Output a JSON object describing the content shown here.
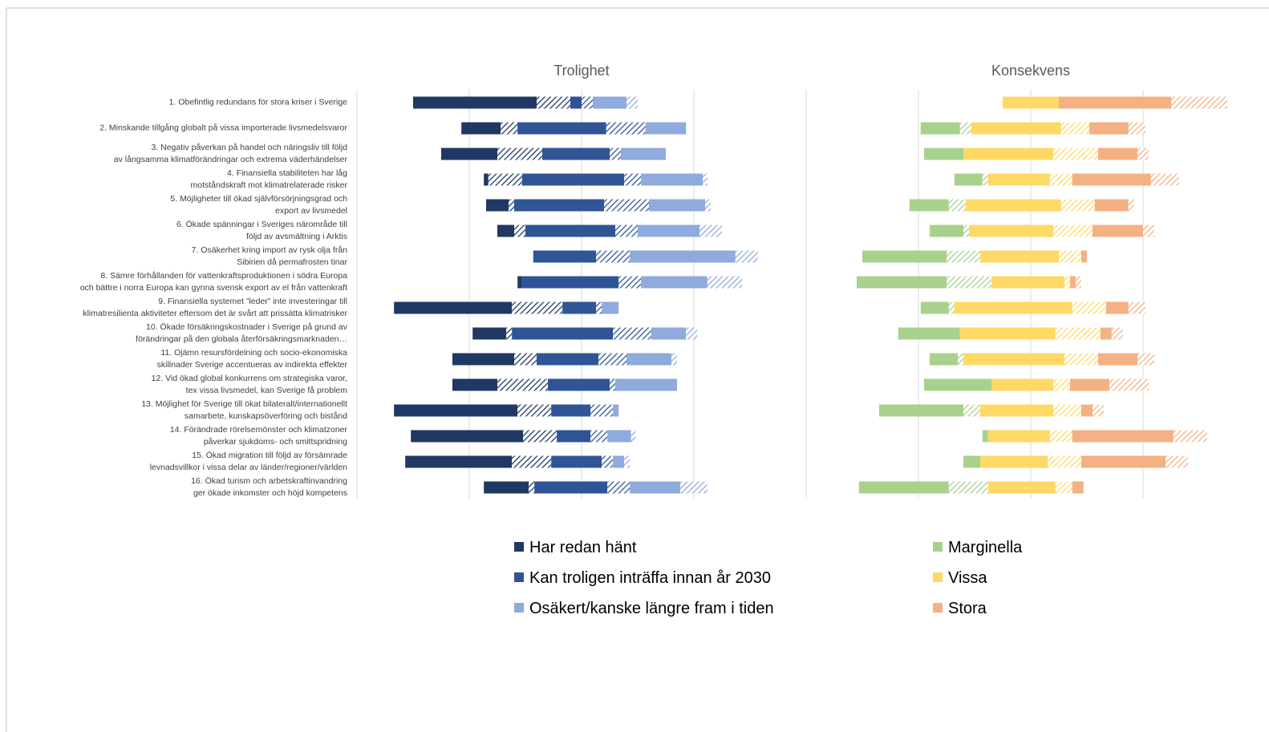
{
  "chart_data": [
    {
      "type": "bar",
      "orientation": "horizontal",
      "stacked": true,
      "title": "Trolighet",
      "categories": [
        "1. Obefintlig redundans för stora kriser i Sverige",
        "2. Minskande tillgång globalt på vissa importerade livsmedelsvaror",
        "3. Negativ påverkan på handel och näringsliv till följd\nav långsamma klimatförändringar och extrema väderhändelser",
        "4. Finansiella stabiliteten har låg\nmotståndskraft mot klimatrelaterade risker",
        "5. Möjligheter till ökad självförsörjningsgrad och\nexport av livsmedel",
        "6. Ökade spänningar i Sveriges närområde till\nföljd av avsmältning i Arktis",
        "7. Osäkerhet kring import av rysk olja från\nSibirien då permafrosten tinar",
        "8. Sämre förhållanden för vattenkraftsproduktionen i södra Europa\noch bättre i norra Europa kan gynna svensk export av el från vattenkraft",
        "9. Finansiella systemet ”leder” inte investeringar till\nklimatresilienta aktiviteter eftersom det är svårt att prissätta klimatrisker",
        "10. Ökade försäkringskostnader i Sverige på grund av\nförändringar på den globala återförsäkringsmarknaden…",
        "11. Ojämn resursfördelning och socio-ekonomiska\nskillnader Sverige accentueras av indirekta effekter",
        "12. Vid ökad global konkurrens om strategiska varor,\ntex vissa livsmedel, kan Sverige få problem",
        "13. Möjlighet för Sverige till ökat bilateralt/internationellt\nsamarbete, kunskapsöverföring och bistånd",
        "14. Förändrade rörelsemönster och klimatzoner\npåverkar sjukdoms- och smittspridning",
        "15. Ökad migration till följd av försämrade\nlevnadsvillkor i vissa delar av länder/regioner/världen",
        "16. Ökad turism och arbetskraftinvandring\nger ökade inkomster och höjd kompetens"
      ],
      "xlim": [
        0,
        40
      ],
      "gridlines": [
        0,
        10,
        20,
        30,
        40
      ],
      "series": [
        {
          "values": [
            5,
            9.3,
            7.5,
            11.3,
            11.5,
            12.5,
            15.7,
            14.3,
            3.3,
            10.3,
            8.5,
            8.5,
            3.3,
            4.8,
            4.3,
            11.3
          ]
        },
        {
          "name": "Har redan hänt",
          "color": "#203864",
          "values": [
            11,
            3.5,
            5,
            0.4,
            2,
            1.5,
            0,
            0.4,
            10.5,
            3,
            5.5,
            4,
            11,
            10,
            9.5,
            4
          ]
        },
        {
          "color": "#203864",
          "hatched": true,
          "values": [
            3,
            1.5,
            4,
            3,
            0.5,
            1,
            0,
            0,
            4.5,
            0.5,
            2,
            4.5,
            3,
            3,
            3.5,
            0.5
          ]
        },
        {
          "name": "Kan troligen inträffa innan år 2030",
          "color": "#2f5597",
          "values": [
            1,
            7.9,
            6,
            9.1,
            8,
            8,
            5.6,
            8.6,
            3,
            9,
            5.5,
            5.5,
            3.5,
            3,
            4.5,
            6.5
          ]
        },
        {
          "color": "#2f5597",
          "hatched": true,
          "values": [
            1,
            3.5,
            1,
            1.5,
            4,
            2,
            3,
            2,
            0.5,
            3.4,
            2.5,
            0.5,
            2,
            1.5,
            1,
            2
          ]
        },
        {
          "name": "Osäkert/kanske längre fram i tiden",
          "color": "#8faadc",
          "values": [
            3,
            3.6,
            4,
            5.5,
            5,
            5.5,
            9.4,
            5.9,
            1.5,
            3.1,
            4,
            5.5,
            0.5,
            2.1,
            1,
            4.5
          ]
        },
        {
          "color": "#8faadc",
          "hatched": true,
          "values": [
            1,
            0,
            0,
            0.4,
            0.5,
            2,
            2,
            3.1,
            0,
            1,
            0.5,
            0,
            0,
            0.4,
            0.5,
            2.4
          ]
        }
      ]
    },
    {
      "type": "bar",
      "orientation": "horizontal",
      "stacked": true,
      "title": "Konsekvens",
      "xlim": [
        0,
        40
      ],
      "gridlines": [
        10,
        20,
        30
      ],
      "series": [
        {
          "values": [
            17.5,
            10.2,
            10.5,
            13.2,
            9.2,
            11,
            5,
            4.5,
            10.2,
            8.2,
            11,
            10.5,
            6.5,
            15.7,
            14,
            4.7
          ]
        },
        {
          "name": "Marginella",
          "color": "#a9d18e",
          "values": [
            0,
            3.5,
            3.5,
            2.5,
            3.5,
            3,
            7.5,
            8,
            2.5,
            5.5,
            2.5,
            6,
            7.5,
            0.5,
            1.5,
            8
          ]
        },
        {
          "color": "#a9d18e",
          "hatched": true,
          "values": [
            0,
            1,
            0,
            0.5,
            1.5,
            0.5,
            3,
            4,
            0.5,
            0,
            0.5,
            0,
            1.5,
            0,
            0,
            3.5
          ]
        },
        {
          "name": "Vissa",
          "color": "#ffd966",
          "values": [
            5,
            8,
            8,
            5.5,
            8.5,
            7.5,
            7,
            6.5,
            10.5,
            8.5,
            9,
            5.5,
            6.5,
            5.5,
            6,
            6
          ]
        },
        {
          "color": "#ffd966",
          "hatched": true,
          "values": [
            0,
            2.5,
            4,
            2,
            3,
            3.5,
            2,
            0.5,
            3,
            4,
            3,
            1.5,
            2.5,
            2,
            3,
            1.5
          ]
        },
        {
          "name": "Stora",
          "color": "#f4b183",
          "values": [
            10,
            3.5,
            3.5,
            7,
            3,
            4.5,
            0.5,
            0.5,
            2,
            1,
            3.5,
            3.5,
            1,
            9,
            7.5,
            1
          ]
        },
        {
          "color": "#f4b183",
          "hatched": true,
          "values": [
            5,
            1.5,
            1,
            2.5,
            0.5,
            1,
            0,
            0.5,
            1.5,
            1,
            1.5,
            3.5,
            1,
            3,
            2,
            0
          ]
        }
      ]
    }
  ]
}
